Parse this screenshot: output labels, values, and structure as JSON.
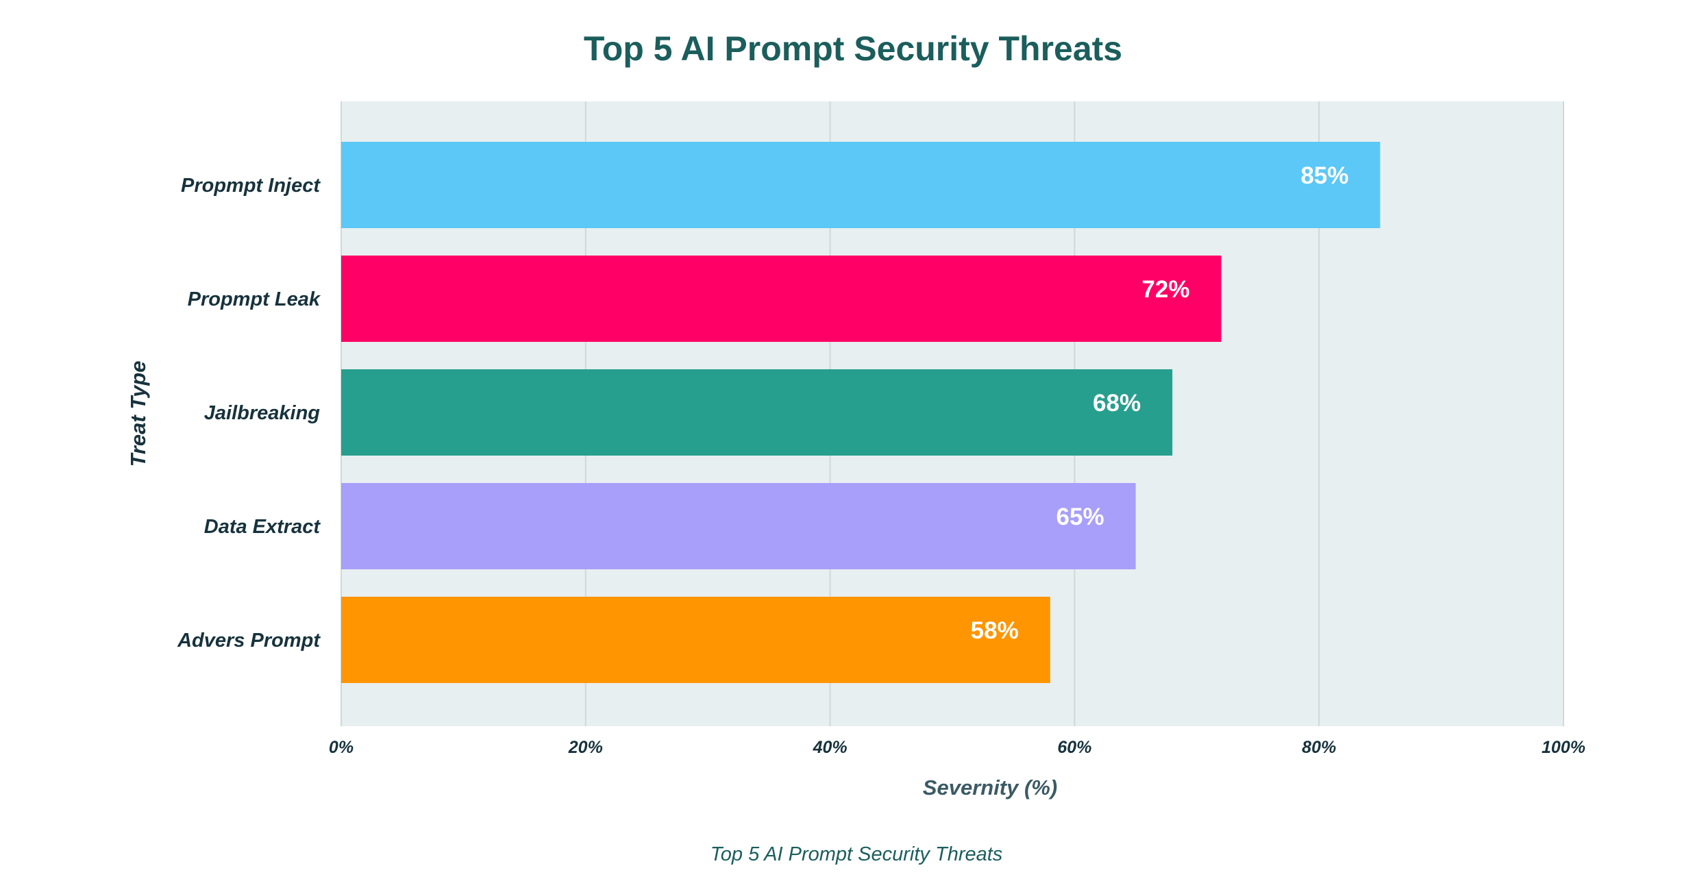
{
  "chart_data": {
    "type": "bar",
    "orientation": "horizontal",
    "title": "Top 5 AI Prompt Security Threats",
    "caption": "Top 5 AI Prompt Security Threats",
    "xlabel": "Severnity (%)",
    "ylabel": "Treat Type",
    "xlim": [
      0,
      100
    ],
    "x_ticks": [
      0,
      20,
      40,
      60,
      80,
      100
    ],
    "x_tick_labels": [
      "0%",
      "20%",
      "40%",
      "60%",
      "80%",
      "100%"
    ],
    "grid": true,
    "categories": [
      "Propmpt Inject",
      "Propmpt Leak",
      "Jailbreaking",
      "Data Extract",
      "Advers Prompt"
    ],
    "values": [
      85,
      72,
      68,
      65,
      58
    ],
    "value_labels": [
      "85%",
      "72%",
      "68%",
      "65%",
      "58%"
    ],
    "bar_colors": [
      "#5bc8f7",
      "#ff0066",
      "#279f8e",
      "#a89ffa",
      "#ff9500"
    ],
    "colors": {
      "title": "#1b5e5c",
      "labels": "#17323c",
      "axis_title": "#3b5a64",
      "caption": "#1b5e5c",
      "plot_background": "#e8eff0",
      "gridline": "#cfd8da",
      "value_text": "#ffffff"
    }
  }
}
